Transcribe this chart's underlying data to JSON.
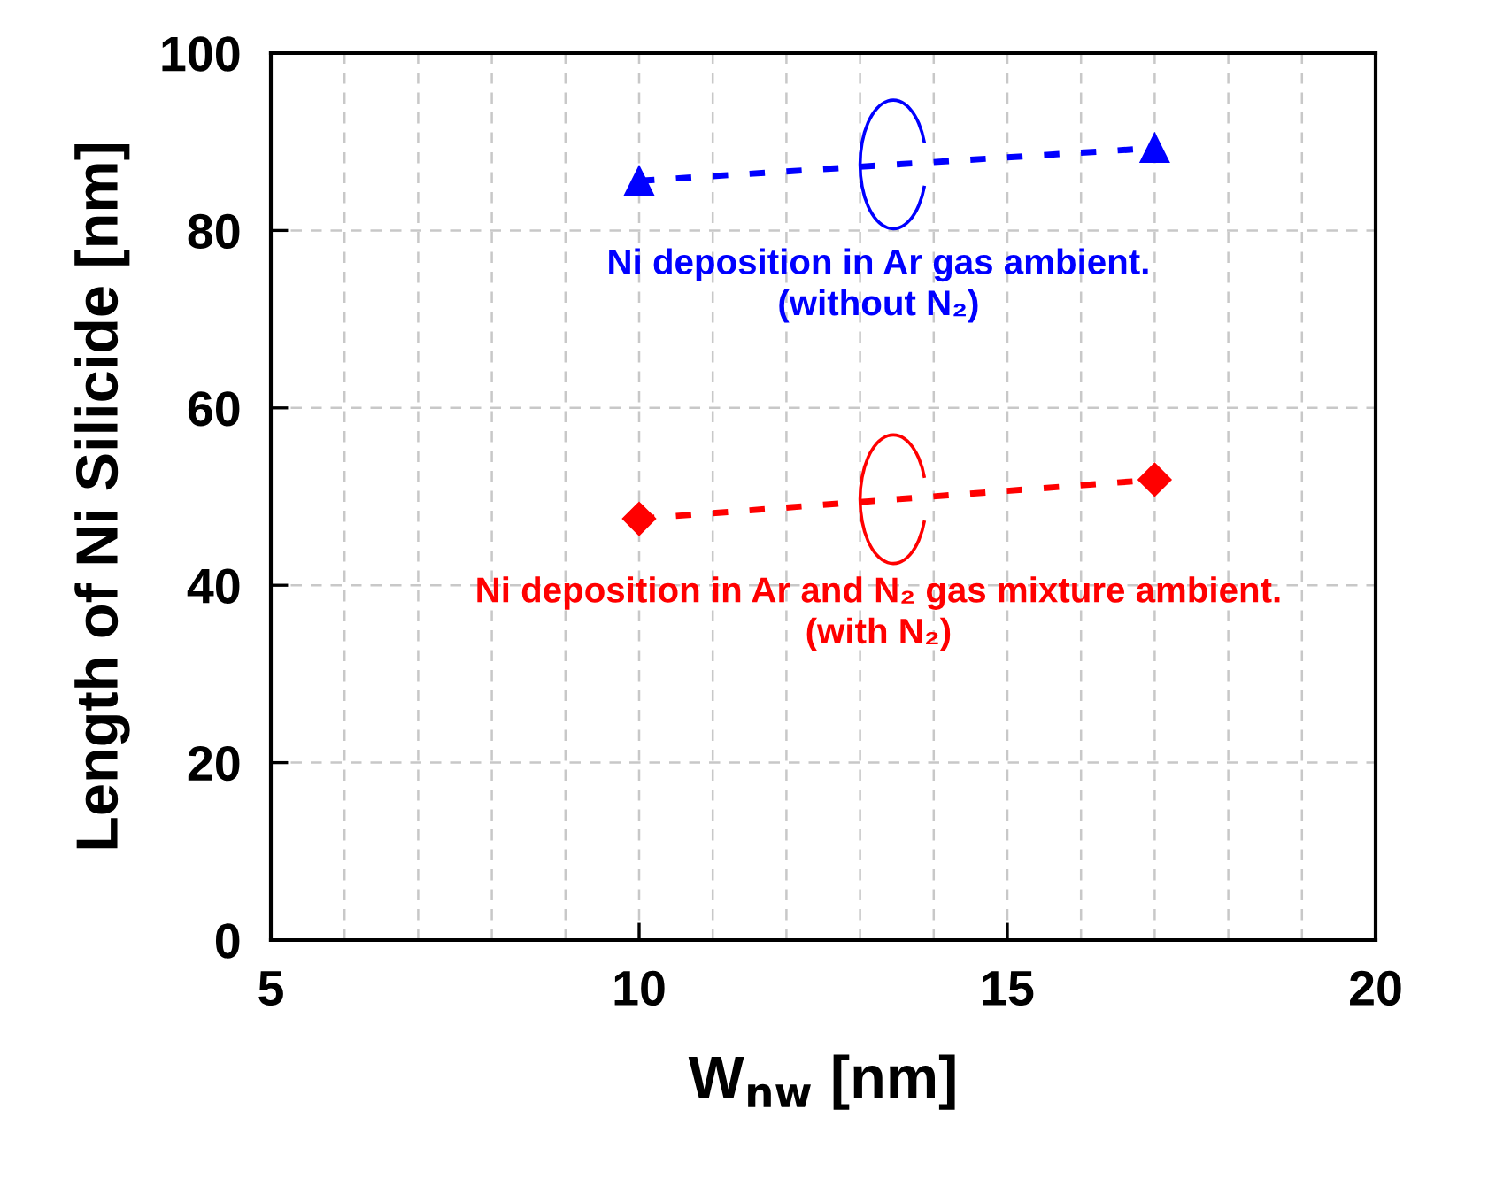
{
  "chart_data": {
    "type": "line",
    "xlabel": "W$_{nw}$ [nm]",
    "ylabel": "Length of Ni Silicide [nm]",
    "xlim": [
      5,
      20
    ],
    "ylim": [
      0,
      100
    ],
    "xticks": [
      5,
      {
        "value": 6,
        "label": null
      },
      {
        "value": 7,
        "label": null
      },
      {
        "value": 8,
        "label": null
      },
      {
        "value": 9,
        "label": null
      },
      10,
      {
        "value": 11,
        "label": null
      },
      {
        "value": 12,
        "label": null
      },
      {
        "value": 13,
        "label": null
      },
      {
        "value": 14,
        "label": null
      },
      15,
      {
        "value": 16,
        "label": null
      },
      {
        "value": 17,
        "label": null
      },
      {
        "value": 18,
        "label": null
      },
      {
        "value": 19,
        "label": null
      },
      20
    ],
    "yticks": [
      0,
      20,
      40,
      60,
      80,
      100
    ],
    "grid": true,
    "line_style": "dashed",
    "x": [
      10,
      17
    ],
    "series": [
      {
        "name": "Ni deposition in Ar gas ambient.\n(without N₂)",
        "color": "#0000ff",
        "marker": "triangle",
        "values": [
          85.6,
          89.3
        ]
      },
      {
        "name": "Ni deposition in Ar and N₂ gas mixture ambient.\n(with N₂)",
        "color": "#ff0000",
        "marker": "diamond",
        "values": [
          47.5,
          51.9
        ]
      }
    ]
  }
}
